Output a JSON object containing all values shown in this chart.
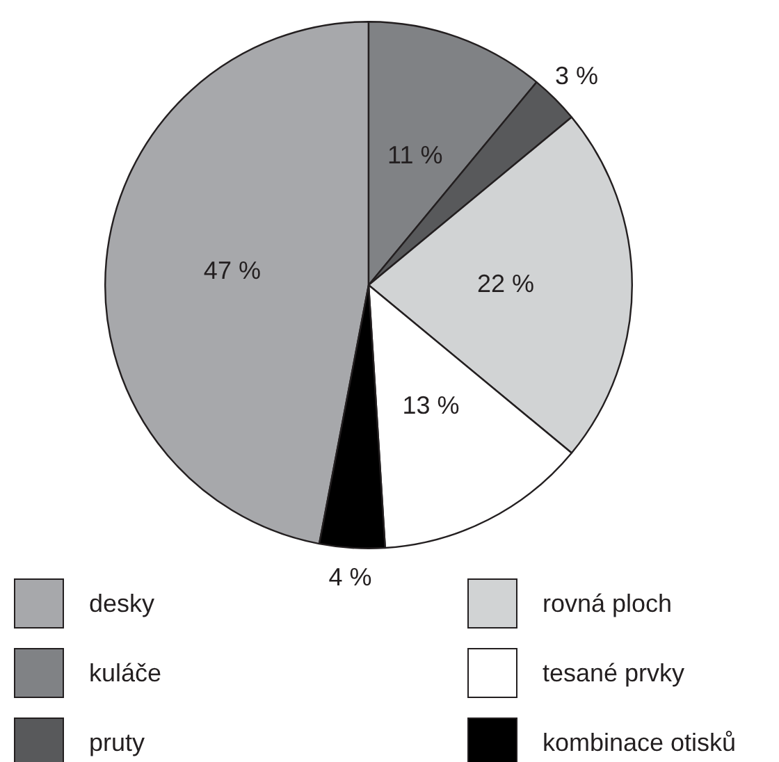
{
  "chart_data": {
    "type": "pie",
    "categories": [
      "desky",
      "kuláče",
      "pruty",
      "rovná ploch",
      "tesané prvky",
      "kombinace otisků"
    ],
    "values": [
      47,
      11,
      3,
      22,
      13,
      4
    ],
    "colors": [
      "#a7a8ab",
      "#808285",
      "#58595b",
      "#d1d3d4",
      "#ffffff",
      "#000000"
    ],
    "value_labels": [
      "47 %",
      "11 %",
      "3 %",
      "22 %",
      "13 %",
      "4 %"
    ],
    "legend": "bottom"
  }
}
